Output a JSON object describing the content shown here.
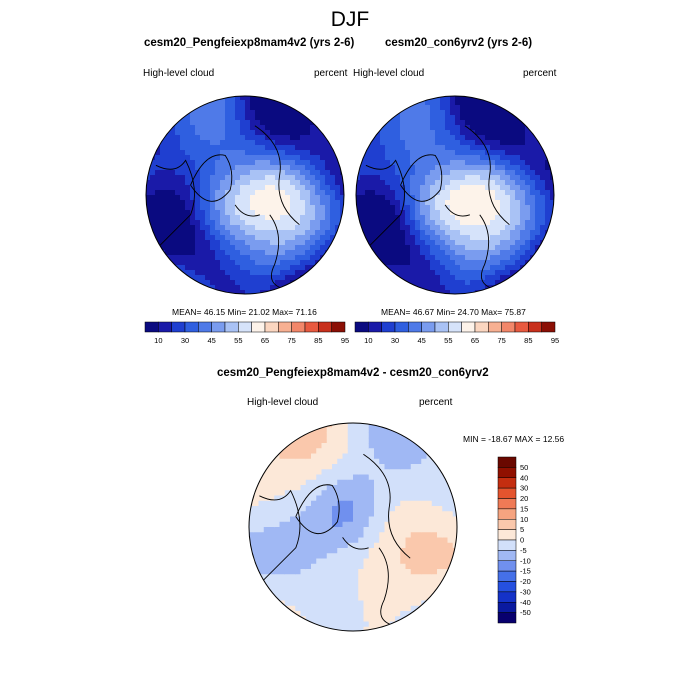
{
  "main_title": "DJF",
  "variable_label": "High-level cloud",
  "units_label": "percent",
  "chart_data": [
    {
      "type": "heatmap",
      "projection": "north-polar-stereographic",
      "title": "cesm20_Pengfeiexp8mam4v2 (yrs 2-6)",
      "variable": "High-level cloud",
      "units": "percent",
      "stats_text": "MEAN=  46.15  Min=  21.02  Max=  71.16",
      "mean": 46.15,
      "min": 21.02,
      "max": 71.16,
      "colorbar_ticks": [
        "10",
        "30",
        "45",
        "55",
        "65",
        "75",
        "85",
        "95"
      ]
    },
    {
      "type": "heatmap",
      "projection": "north-polar-stereographic",
      "title": "cesm20_con6yrv2 (yrs 2-6)",
      "variable": "High-level cloud",
      "units": "percent",
      "stats_text": "MEAN=  46.67  Min=  24.70  Max=  75.87",
      "mean": 46.67,
      "min": 24.7,
      "max": 75.87,
      "colorbar_ticks": [
        "10",
        "30",
        "45",
        "55",
        "65",
        "75",
        "85",
        "95"
      ]
    },
    {
      "type": "heatmap",
      "projection": "north-polar-stereographic",
      "title": "cesm20_Pengfeiexp8mam4v2 - cesm20_con6yrv2",
      "variable": "High-level cloud",
      "units": "percent",
      "stats_text": "MIN = -18.67 MAX =  12.56",
      "min": -18.67,
      "max": 12.56,
      "colorbar_ticks": [
        "50",
        "40",
        "30",
        "20",
        "15",
        "10",
        "5",
        "0",
        "-5",
        "-10",
        "-15",
        "-20",
        "-30",
        "-40",
        "-50"
      ]
    }
  ],
  "palettes": {
    "absolute": [
      "#0a0a80",
      "#1a1aa8",
      "#1f3fd0",
      "#2f5fe0",
      "#4f7ae8",
      "#7a9cef",
      "#a9c2f5",
      "#d6e3fa",
      "#fdf3ea",
      "#fbd6c0",
      "#f7b092",
      "#f2876a",
      "#e85a40",
      "#c8301c",
      "#8b0f05"
    ],
    "difference": [
      "#08006e",
      "#0a1aa0",
      "#1432c8",
      "#2550e0",
      "#4570e8",
      "#7090ee",
      "#a0b8f4",
      "#d2e0fa",
      "#fce8d8",
      "#fac8ac",
      "#f6a480",
      "#ef7a56",
      "#e4542e",
      "#c42e10",
      "#901000",
      "#6a0800"
    ]
  }
}
